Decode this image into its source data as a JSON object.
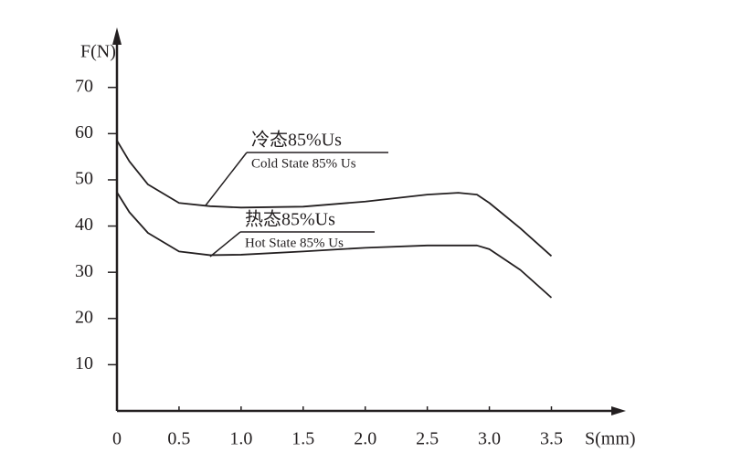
{
  "chart_data": {
    "type": "line",
    "y_label": "F(N)",
    "x_label": "S(mm)",
    "xlim": [
      0,
      4.1
    ],
    "ylim": [
      0,
      82
    ],
    "xticks": [
      0,
      0.5,
      {
        "value": 1,
        "label": "1.0"
      },
      1.5,
      {
        "value": 2,
        "label": "2.0"
      },
      2.5,
      {
        "value": 3,
        "label": "3.0"
      },
      3.5
    ],
    "yticks": [
      10,
      20,
      30,
      40,
      50,
      60,
      70
    ],
    "series": [
      {
        "name": "冷态85%Us",
        "subname": "Cold State 85% Us",
        "color": "#231f20",
        "x": [
          0,
          0.1,
          0.25,
          0.5,
          0.75,
          1,
          1.5,
          2,
          2.5,
          2.75,
          2.9,
          3,
          3.25,
          3.5
        ],
        "values": [
          58.5,
          54,
          49,
          45,
          44.3,
          44,
          44.2,
          45.3,
          46.8,
          47.2,
          46.8,
          45,
          39.5,
          33.5
        ]
      },
      {
        "name": "热态85%Us",
        "subname": "Hot State 85% Us",
        "color": "#231f20",
        "x": [
          0,
          0.1,
          0.25,
          0.5,
          0.75,
          1,
          1.5,
          2,
          2.5,
          2.9,
          3,
          3.25,
          3.5
        ],
        "values": [
          47.3,
          43,
          38.5,
          34.5,
          33.7,
          33.8,
          34.5,
          35.3,
          35.8,
          35.8,
          35,
          30.5,
          24.5
        ]
      }
    ]
  }
}
